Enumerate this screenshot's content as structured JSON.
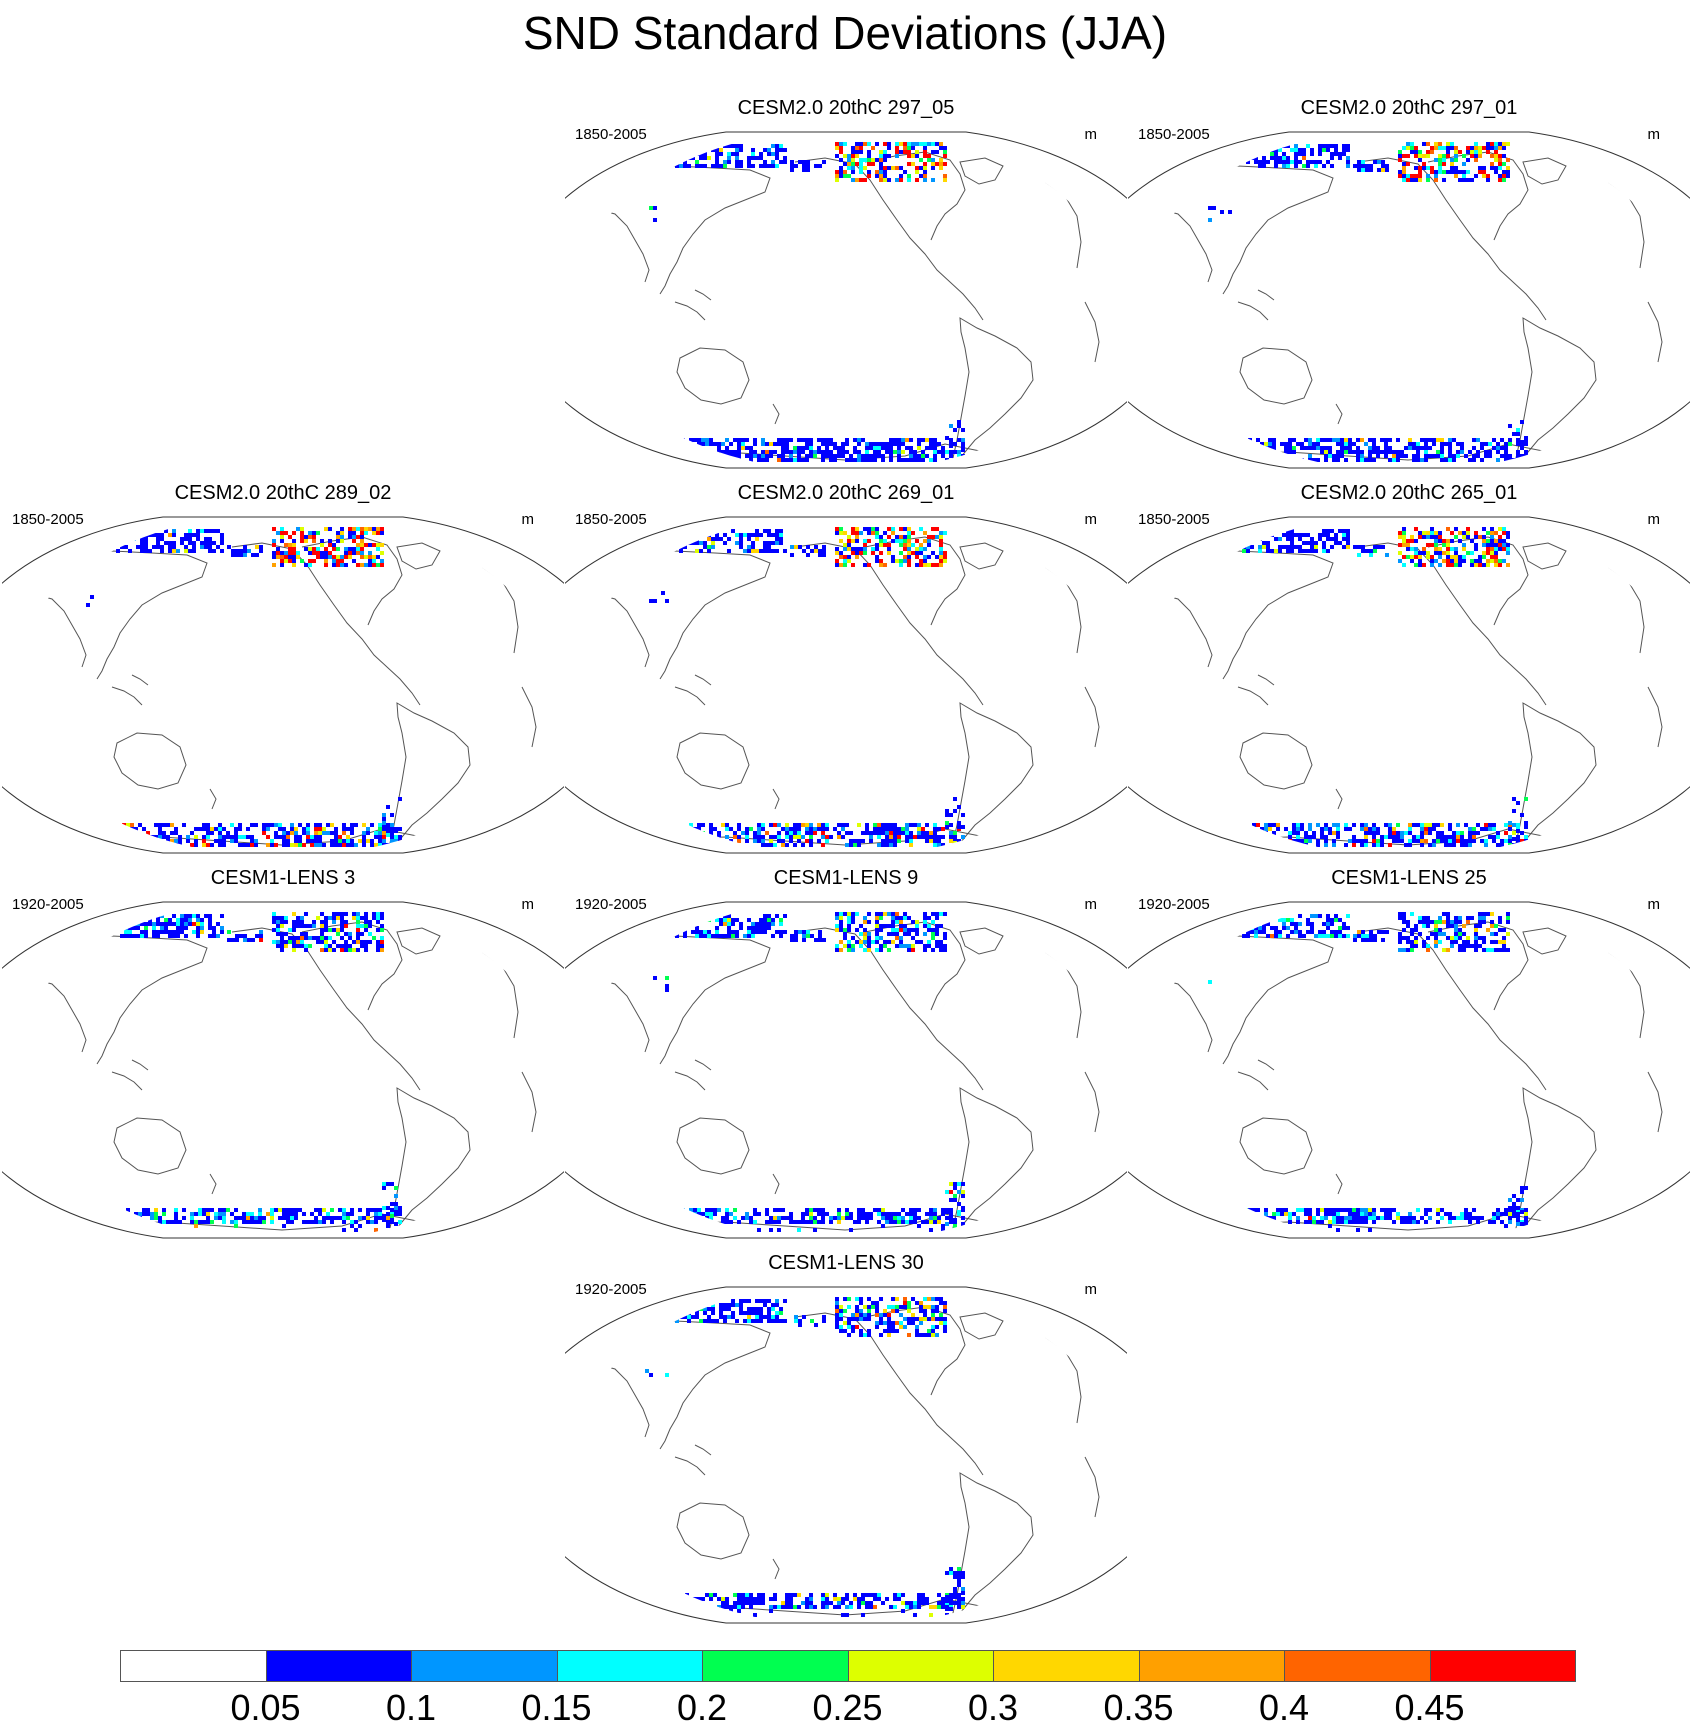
{
  "title": "SND Standard Deviations (JJA)",
  "unit": "m",
  "panels": [
    {
      "title": "CESM2.0 20thC 297_05",
      "years": "1850-2005",
      "intensity": "medium"
    },
    {
      "title": "CESM2.0 20thC 297_01",
      "years": "1850-2005",
      "intensity": "medium"
    },
    {
      "title": "CESM2.0 20thC 289_02",
      "years": "1850-2005",
      "intensity": "high"
    },
    {
      "title": "CESM2.0 20thC 269_01",
      "years": "1850-2005",
      "intensity": "high"
    },
    {
      "title": "CESM2.0 20thC 265_01",
      "years": "1850-2005",
      "intensity": "high"
    },
    {
      "title": "CESM1-LENS 3",
      "years": "1920-2005",
      "intensity": "low"
    },
    {
      "title": "CESM1-LENS 9",
      "years": "1920-2005",
      "intensity": "low"
    },
    {
      "title": "CESM1-LENS 25",
      "years": "1920-2005",
      "intensity": "low"
    },
    {
      "title": "CESM1-LENS 30",
      "years": "1920-2005",
      "intensity": "low"
    }
  ],
  "colorbar": {
    "labels": [
      "0.05",
      "0.1",
      "0.15",
      "0.2",
      "0.25",
      "0.3",
      "0.35",
      "0.4",
      "0.45"
    ],
    "colors": [
      "#ffffff",
      "#0000ff",
      "#0096ff",
      "#00ffff",
      "#00ff50",
      "#ddff00",
      "#ffd700",
      "#ffa000",
      "#ff6400",
      "#ff0000"
    ]
  }
}
